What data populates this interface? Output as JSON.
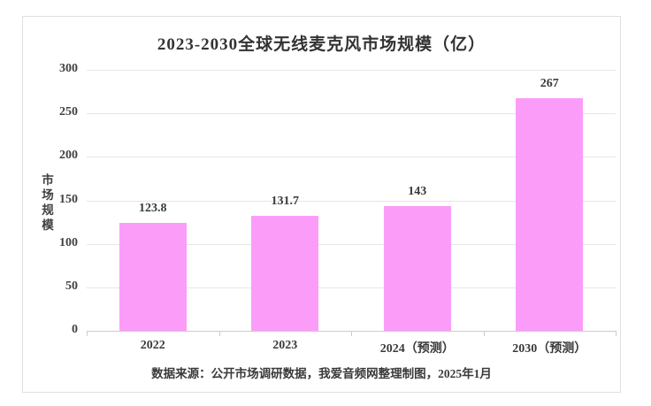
{
  "chart_data": {
    "type": "bar",
    "title": "2023-2030全球无线麦克风市场规模（亿）",
    "categories": [
      "2022",
      "2023",
      "2024（预测）",
      "2030（预测）"
    ],
    "values": [
      123.8,
      131.7,
      143,
      267
    ],
    "value_labels": [
      "123.8",
      "131.7",
      "143",
      "267"
    ],
    "xlabel": "",
    "ylabel": "市场规模",
    "ylim": [
      0,
      300
    ],
    "yticks": [
      0,
      50,
      100,
      150,
      200,
      250,
      300
    ],
    "grid": true,
    "legend": false,
    "bar_color": "#FB9DF8",
    "source_note": "数据来源：公开市场调研数据，我爱音频网整理制图，2025年1月"
  }
}
